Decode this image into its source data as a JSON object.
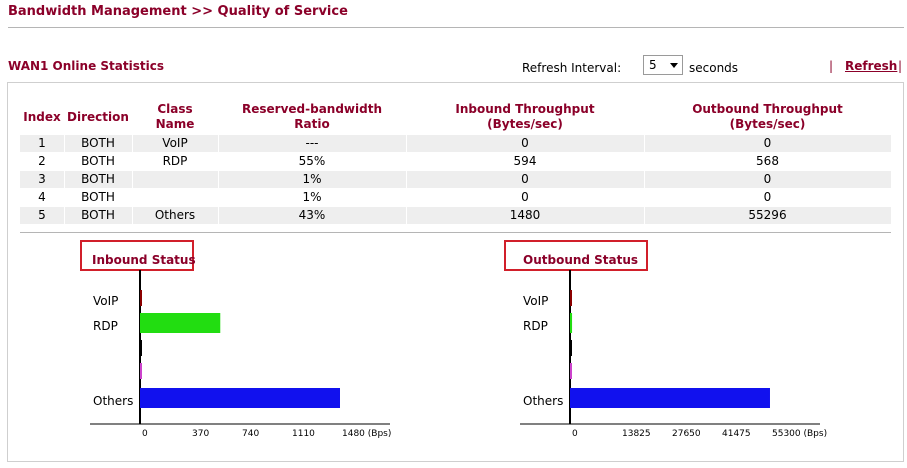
{
  "header": {
    "title": "Bandwidth Management >> Quality of Service"
  },
  "stats": {
    "title": "WAN1 Online Statistics",
    "refresh_interval_label": "Refresh Interval:",
    "refresh_interval_value": "5",
    "seconds_label": "seconds",
    "pipe": "|",
    "refresh_link": "Refresh"
  },
  "table": {
    "headers": {
      "index": "Index",
      "direction": "Direction",
      "class1": "Class",
      "class2": "Name",
      "ratio1": "Reserved-bandwidth",
      "ratio2": "Ratio",
      "in1": "Inbound Throughput",
      "in2": "(Bytes/sec)",
      "out1": "Outbound Throughput",
      "out2": "(Bytes/sec)"
    },
    "rows": [
      {
        "index": "1",
        "direction": "BOTH",
        "name": "VoIP",
        "ratio": "---",
        "inbound": "0",
        "outbound": "0"
      },
      {
        "index": "2",
        "direction": "BOTH",
        "name": "RDP",
        "ratio": "55%",
        "inbound": "594",
        "outbound": "568"
      },
      {
        "index": "3",
        "direction": "BOTH",
        "name": "",
        "ratio": "1%",
        "inbound": "0",
        "outbound": "0"
      },
      {
        "index": "4",
        "direction": "BOTH",
        "name": "",
        "ratio": "1%",
        "inbound": "0",
        "outbound": "0"
      },
      {
        "index": "5",
        "direction": "BOTH",
        "name": "Others",
        "ratio": "43%",
        "inbound": "1480",
        "outbound": "55296"
      }
    ]
  },
  "chart_data": [
    {
      "type": "bar",
      "title": "Inbound Status",
      "categories": [
        "VoIP",
        "RDP",
        "",
        "",
        "Others"
      ],
      "values": [
        0,
        594,
        0,
        0,
        1480
      ],
      "colors": [
        "#8b0000",
        "#22dd11",
        "#000000",
        "#cc44cc",
        "#1111ee"
      ],
      "ticks": [
        "0",
        "370",
        "740",
        "1110",
        "1480 (Bps)"
      ],
      "xlim": [
        0,
        1480
      ]
    },
    {
      "type": "bar",
      "title": "Outbound Status",
      "categories": [
        "VoIP",
        "RDP",
        "",
        "",
        "Others"
      ],
      "values": [
        0,
        568,
        0,
        0,
        55296
      ],
      "colors": [
        "#8b0000",
        "#22dd11",
        "#000000",
        "#cc44cc",
        "#1111ee"
      ],
      "ticks": [
        "0",
        "13825",
        "27650",
        "41475",
        "55300 (Bps)"
      ],
      "xlim": [
        0,
        55300
      ]
    }
  ]
}
